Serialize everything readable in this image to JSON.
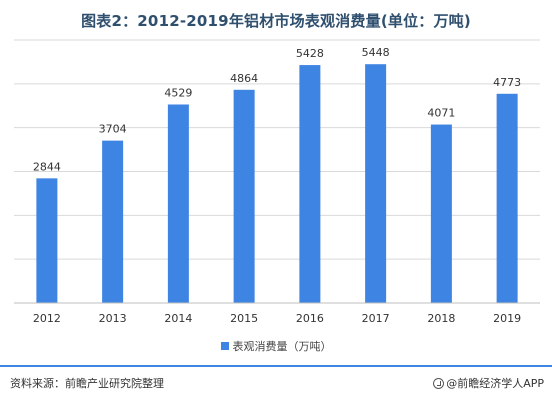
{
  "title": "图表2：2012-2019年铝材市场表观消费量(单位：万吨)",
  "legend_label": "表观消费量（万吨）",
  "source_text": "资料来源：前瞻产业研究院整理",
  "brand_text": "@前瞻经济学人APP",
  "colors": {
    "bar": "#3e84e2",
    "grid": "#d9d9d9",
    "axis": "#bfbfbf"
  },
  "chart_data": {
    "type": "bar",
    "title": "图表2：2012-2019年铝材市场表观消费量(单位：万吨)",
    "categories": [
      "2012",
      "2013",
      "2014",
      "2015",
      "2016",
      "2017",
      "2018",
      "2019"
    ],
    "series": [
      {
        "name": "表观消费量（万吨）",
        "values": [
          2844,
          3704,
          4529,
          4864,
          5428,
          5448,
          4071,
          4773
        ]
      }
    ],
    "ylim": [
      0,
      6000
    ],
    "grid": true,
    "legend": "bottom"
  }
}
